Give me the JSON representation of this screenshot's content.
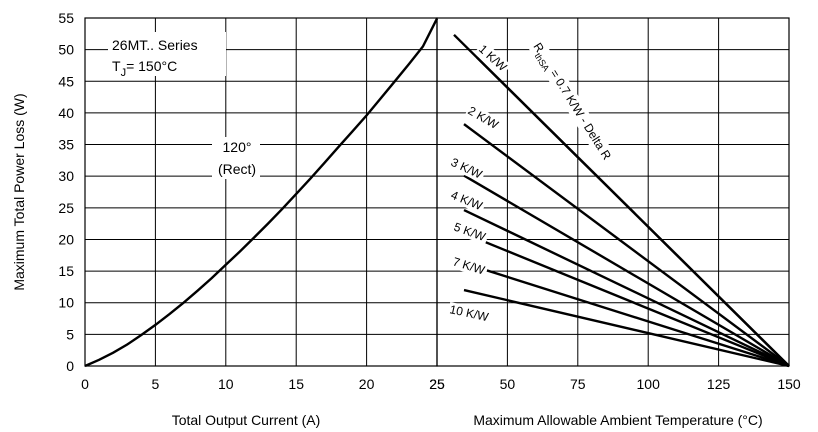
{
  "chart_data": {
    "type": "line",
    "series_note": {
      "line1": "26MT.. Series",
      "line2_prefix": "T",
      "line2_sub": "J",
      "line2_suffix": "= 150°C"
    },
    "ylabel": "Maximum Total Power Loss (W)",
    "ylim": [
      0,
      55
    ],
    "yticks": [
      0,
      5,
      10,
      15,
      20,
      25,
      30,
      35,
      40,
      45,
      50,
      55
    ],
    "left_panel": {
      "xlabel": "Total Output Current (A)",
      "xlim": [
        0,
        25
      ],
      "xticks": [
        0,
        5,
        10,
        15,
        20,
        25
      ],
      "curve_label_1": "120°",
      "curve_label_2": "(Rect)",
      "curve": {
        "x": [
          0,
          1,
          2,
          3,
          4,
          5,
          6,
          7,
          8,
          9,
          10,
          11,
          12,
          13,
          14,
          15,
          16,
          17,
          18,
          19,
          20,
          21,
          22,
          23,
          24,
          25
        ],
        "y": [
          0,
          0.98,
          2.1,
          3.4,
          4.9,
          6.5,
          8.2,
          10.0,
          11.9,
          13.9,
          16.0,
          18.1,
          20.3,
          22.5,
          24.8,
          27.2,
          29.6,
          32.1,
          34.6,
          37.1,
          39.6,
          42.3,
          45.0,
          47.7,
          50.5,
          54.9
        ]
      }
    },
    "right_panel": {
      "xlabel": "Maximum Allowable Ambient Temperature (°C)",
      "xlim": [
        25,
        150
      ],
      "xticks": [
        25,
        50,
        75,
        100,
        125,
        150
      ],
      "lines": [
        {
          "label": "R thSA = 0.7 K/W - Delta R",
          "x": [
            25,
            150
          ],
          "y": [
            55,
            0
          ]
        },
        {
          "label": "1 K/W",
          "x": [
            25,
            150
          ],
          "y": [
            55,
            0
          ]
        },
        {
          "label": "2 K/W",
          "x": [
            25,
            150
          ],
          "y": [
            41.4,
            0
          ]
        },
        {
          "label": "3 K/W",
          "x": [
            25,
            150
          ],
          "y": [
            32.6,
            0
          ]
        },
        {
          "label": "4 K/W",
          "x": [
            25,
            150
          ],
          "y": [
            26.7,
            0
          ]
        },
        {
          "label": "5 K/W",
          "x": [
            25,
            150
          ],
          "y": [
            22.7,
            0
          ]
        },
        {
          "label": "7 K/W",
          "x": [
            25,
            150
          ],
          "y": [
            17.6,
            0
          ]
        },
        {
          "label": "10 K/W",
          "x": [
            25,
            150
          ],
          "y": [
            13.0,
            0
          ]
        }
      ],
      "rthsa_label": {
        "main": "R",
        "sub": "thSA",
        "rest": " = 0.7 K/W - Delta R"
      }
    },
    "grid": true
  }
}
